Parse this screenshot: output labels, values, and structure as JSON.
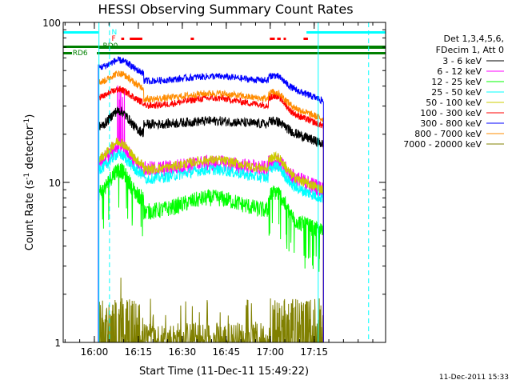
{
  "chart_data": {
    "type": "line",
    "title": "HESSI Observing Summary Count Rates",
    "xlabel": "Start Time (11-Dec-11 15:49:22)",
    "ylabel_main": "Count Rate (s",
    "ylabel_sup1": "-1",
    "ylabel_mid": " detector",
    "ylabel_sup2": "-1",
    "ylabel_end": ")",
    "yscale": "log",
    "ylim": [
      1,
      100
    ],
    "xlim_min": [
      0,
      110
    ],
    "y_ticks": [
      {
        "value": 1,
        "label": "1"
      },
      {
        "value": 10,
        "label": "10"
      },
      {
        "value": 100,
        "label": "100"
      }
    ],
    "x_ticks": [
      {
        "value": 10.63,
        "label": "16:00"
      },
      {
        "value": 25.63,
        "label": "16:15"
      },
      {
        "value": 40.63,
        "label": "16:30"
      },
      {
        "value": 55.63,
        "label": "16:45"
      },
      {
        "value": 70.63,
        "label": "17:00"
      },
      {
        "value": 85.63,
        "label": "17:15"
      }
    ],
    "legend_header": [
      "Det 1,3,4,5,6,",
      "FDecim 1, Att 0"
    ],
    "series": [
      {
        "name": "3 - 6 keV",
        "color": "#000000"
      },
      {
        "name": "6 - 12 keV",
        "color": "#ff00ff"
      },
      {
        "name": "12 - 25 keV",
        "color": "#00ff00"
      },
      {
        "name": "25 - 50 keV",
        "color": "#00ffff"
      },
      {
        "name": "50 - 100 keV",
        "color": "#cccc00"
      },
      {
        "name": "100 - 300 keV",
        "color": "#ff0000"
      },
      {
        "name": "300 - 800 keV",
        "color": "#0000ff"
      },
      {
        "name": "800 - 7000 keV",
        "color": "#ff8c00"
      },
      {
        "name": "7000 - 20000 keV",
        "color": "#808000"
      }
    ],
    "series_profile": [
      {
        "name": "3 - 6 keV",
        "level_day": 22,
        "peak1": 28,
        "mid": 23,
        "hump": 25,
        "tail": 20,
        "noise": 0.07
      },
      {
        "name": "6 - 12 keV",
        "level_day": 13,
        "peak1": 17,
        "mid": 12,
        "hump": 14,
        "tail": 10,
        "noise": 0.12
      },
      {
        "name": "12 - 25 keV",
        "level_day": 8.5,
        "peak1": 12,
        "mid": 6.5,
        "hump": 9,
        "tail": 7.5,
        "noise": 0.12
      },
      {
        "name": "25 - 50 keV",
        "level_day": 12,
        "peak1": 15,
        "mid": 10.5,
        "hump": 13,
        "tail": 11,
        "noise": 0.08
      },
      {
        "name": "50 - 100 keV",
        "level_day": 14,
        "peak1": 18,
        "mid": 12,
        "hump": 15,
        "tail": 13,
        "noise": 0.07
      },
      {
        "name": "100 - 300 keV",
        "level_day": 34,
        "peak1": 38,
        "mid": 30,
        "hump": 36,
        "tail": 30,
        "noise": 0.05
      },
      {
        "name": "300 - 800 keV",
        "level_day": 52,
        "peak1": 58,
        "mid": 43,
        "hump": 48,
        "tail": 42,
        "noise": 0.05
      },
      {
        "name": "800 - 7000 keV",
        "level_day": 42,
        "peak1": 48,
        "mid": 33,
        "hump": 38,
        "tail": 30,
        "noise": 0.05
      },
      {
        "name": "7000 - 20000 keV",
        "level_day": 1.0,
        "peak1": 2.0,
        "mid": 1.0,
        "hump": 1.0,
        "tail": 1.0,
        "noise": 0.3
      }
    ],
    "day_intervals": [
      [
        12.0,
        27.5
      ],
      [
        70.0,
        88.8
      ]
    ],
    "flags": {
      "N": {
        "label": "N",
        "color": "#00ffff",
        "intervals": [
          [
            0,
            12.0
          ],
          [
            83.0,
            110
          ]
        ]
      },
      "F": {
        "label": "F",
        "color": "#ff0000",
        "intervals": [
          [
            22.5,
            27.5
          ]
        ]
      },
      "RD0": {
        "label": "RD0",
        "color": "#008000"
      },
      "RD6": {
        "label": "RD6",
        "color": "#008000"
      }
    },
    "saa_lines": {
      "solid": [
        12.2,
        87.0
      ],
      "dashed": [
        15.8,
        104.2
      ],
      "color": "#00ffff"
    }
  },
  "footer": {
    "timestamp": "11-Dec-2011 15:33"
  }
}
